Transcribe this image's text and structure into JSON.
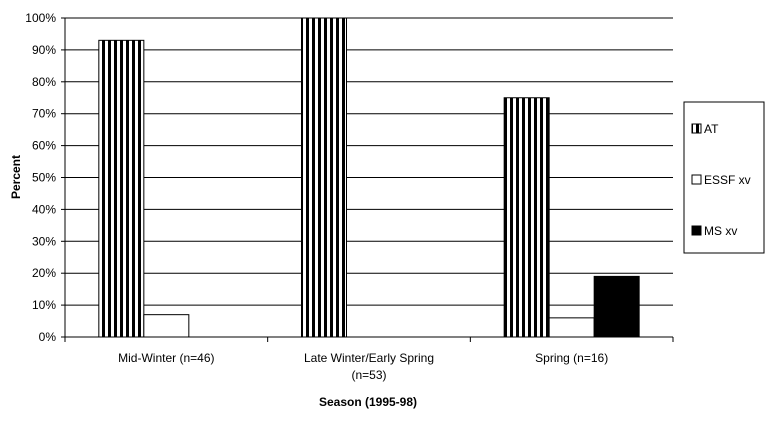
{
  "chart_data": {
    "type": "bar",
    "title": "",
    "xlabel": "Season (1995-98)",
    "ylabel": "Percent",
    "ylim": [
      0,
      100
    ],
    "y_ticks": [
      "0%",
      "10%",
      "20%",
      "30%",
      "40%",
      "50%",
      "60%",
      "70%",
      "80%",
      "90%",
      "100%"
    ],
    "categories": [
      [
        "Mid-Winter (n=46)"
      ],
      [
        "Late Winter/Early Spring",
        "(n=53)"
      ],
      [
        "Spring (n=16)"
      ]
    ],
    "series": [
      {
        "name": "AT",
        "values": [
          93,
          100,
          75
        ],
        "pattern": "vertical-stripes",
        "color": "#000000"
      },
      {
        "name": "ESSF xv",
        "values": [
          7,
          0,
          6
        ],
        "pattern": "white",
        "color": "#ffffff"
      },
      {
        "name": "MS xv",
        "values": [
          0,
          0,
          19
        ],
        "pattern": "solid",
        "color": "#000000"
      }
    ],
    "grid": true,
    "legend_position": "right"
  }
}
